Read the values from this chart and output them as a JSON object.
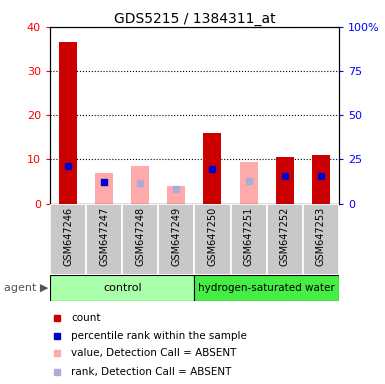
{
  "title": "GDS5215 / 1384311_at",
  "samples": [
    "GSM647246",
    "GSM647247",
    "GSM647248",
    "GSM647249",
    "GSM647250",
    "GSM647251",
    "GSM647252",
    "GSM647253"
  ],
  "count_present": [
    36.5,
    null,
    null,
    null,
    16.0,
    null,
    10.5,
    11.0
  ],
  "count_absent": [
    null,
    7.0,
    8.5,
    4.0,
    null,
    9.5,
    null,
    null
  ],
  "rank_present": [
    21.5,
    12.0,
    null,
    null,
    19.5,
    null,
    15.5,
    15.5
  ],
  "rank_absent": [
    null,
    null,
    11.5,
    8.5,
    null,
    13.0,
    null,
    null
  ],
  "bar_color_present": "#cc0000",
  "bar_color_absent": "#ffaaaa",
  "dot_color_present": "#0000cc",
  "dot_color_absent": "#aaaadd",
  "ylim": [
    0,
    40
  ],
  "yticks": [
    0,
    10,
    20,
    30,
    40
  ],
  "y2lim": [
    0,
    100
  ],
  "y2ticks": [
    0,
    25,
    50,
    75,
    100
  ],
  "y2tick_labels": [
    "0",
    "25",
    "50",
    "75",
    "100%"
  ],
  "ctrl_color": "#aaffaa",
  "hw_color": "#44ee44",
  "sample_bg": "#c8c8c8",
  "n_ctrl": 4,
  "n_hw": 4
}
